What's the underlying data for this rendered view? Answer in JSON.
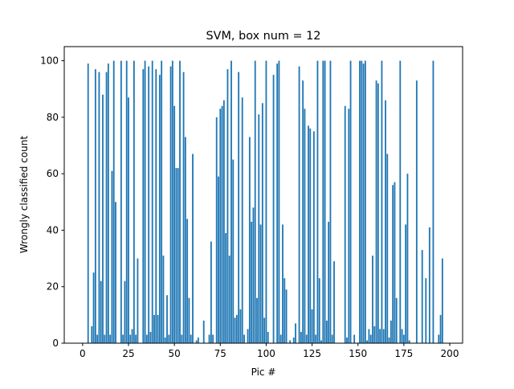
{
  "chart_data": {
    "type": "bar",
    "title": "SVM, box num = 12",
    "xlabel": "Pic #",
    "ylabel": "Wrongly classified count",
    "color": "#1f77b4",
    "bar_width": 0.8,
    "xlim": [
      -10,
      207
    ],
    "ylim": [
      0,
      105
    ],
    "xticks": [
      0,
      25,
      50,
      75,
      100,
      125,
      150,
      175,
      200
    ],
    "yticks": [
      0,
      20,
      40,
      60,
      80,
      100
    ],
    "x": [
      0,
      1,
      2,
      3,
      4,
      5,
      6,
      7,
      8,
      9,
      10,
      11,
      12,
      13,
      14,
      15,
      16,
      17,
      18,
      19,
      20,
      21,
      22,
      23,
      24,
      25,
      26,
      27,
      28,
      29,
      30,
      31,
      32,
      33,
      34,
      35,
      36,
      37,
      38,
      39,
      40,
      41,
      42,
      43,
      44,
      45,
      46,
      47,
      48,
      49,
      50,
      51,
      52,
      53,
      54,
      55,
      56,
      57,
      58,
      59,
      60,
      61,
      62,
      63,
      64,
      65,
      66,
      67,
      68,
      69,
      70,
      71,
      72,
      73,
      74,
      75,
      76,
      77,
      78,
      79,
      80,
      81,
      82,
      83,
      84,
      85,
      86,
      87,
      88,
      89,
      90,
      91,
      92,
      93,
      94,
      95,
      96,
      97,
      98,
      99,
      100,
      101,
      102,
      103,
      104,
      105,
      106,
      107,
      108,
      109,
      110,
      111,
      112,
      113,
      114,
      115,
      116,
      117,
      118,
      119,
      120,
      121,
      122,
      123,
      124,
      125,
      126,
      127,
      128,
      129,
      130,
      131,
      132,
      133,
      134,
      135,
      136,
      137,
      138,
      139,
      140,
      141,
      142,
      143,
      144,
      145,
      146,
      147,
      148,
      149,
      150,
      151,
      152,
      153,
      154,
      155,
      156,
      157,
      158,
      159,
      160,
      161,
      162,
      163,
      164,
      165,
      166,
      167,
      168,
      169,
      170,
      171,
      172,
      173,
      174,
      175,
      176,
      177,
      178,
      179,
      180,
      181,
      182,
      183,
      184,
      185,
      186,
      187,
      188,
      189,
      190,
      191,
      192,
      193,
      194,
      195,
      196,
      197
    ],
    "values": [
      0,
      0,
      0,
      99,
      0,
      6,
      25,
      97,
      3,
      96,
      22,
      88,
      3,
      96,
      99,
      3,
      61,
      100,
      50,
      0,
      0,
      100,
      3,
      22,
      100,
      87,
      3,
      5,
      100,
      3,
      30,
      0,
      0,
      97,
      100,
      3,
      98,
      4,
      100,
      10,
      97,
      10,
      95,
      100,
      31,
      2,
      17,
      3,
      98,
      100,
      84,
      62,
      62,
      100,
      3,
      96,
      73,
      44,
      16,
      3,
      67,
      0,
      1,
      2,
      0,
      0,
      8,
      0,
      0,
      3,
      36,
      3,
      0,
      80,
      59,
      83,
      84,
      86,
      39,
      97,
      31,
      100,
      65,
      9,
      10,
      96,
      12,
      87,
      3,
      0,
      5,
      73,
      43,
      48,
      100,
      16,
      81,
      42,
      85,
      9,
      100,
      4,
      0,
      0,
      95,
      0,
      99,
      100,
      3,
      42,
      23,
      19,
      0,
      1,
      0,
      2,
      7,
      0,
      98,
      4,
      93,
      83,
      3,
      77,
      76,
      12,
      75,
      3,
      100,
      23,
      1,
      100,
      100,
      8,
      43,
      100,
      3,
      29,
      0,
      0,
      0,
      0,
      0,
      84,
      2,
      83,
      100,
      0,
      3,
      0,
      0,
      100,
      100,
      99,
      100,
      1,
      5,
      3,
      31,
      6,
      93,
      92,
      5,
      100,
      5,
      86,
      67,
      2,
      8,
      56,
      57,
      16,
      0,
      100,
      5,
      3,
      42,
      60,
      1,
      0,
      0,
      0,
      93,
      0,
      0,
      33,
      0,
      23,
      0,
      41,
      0,
      100,
      0,
      0,
      3,
      10,
      30,
      0
    ]
  }
}
